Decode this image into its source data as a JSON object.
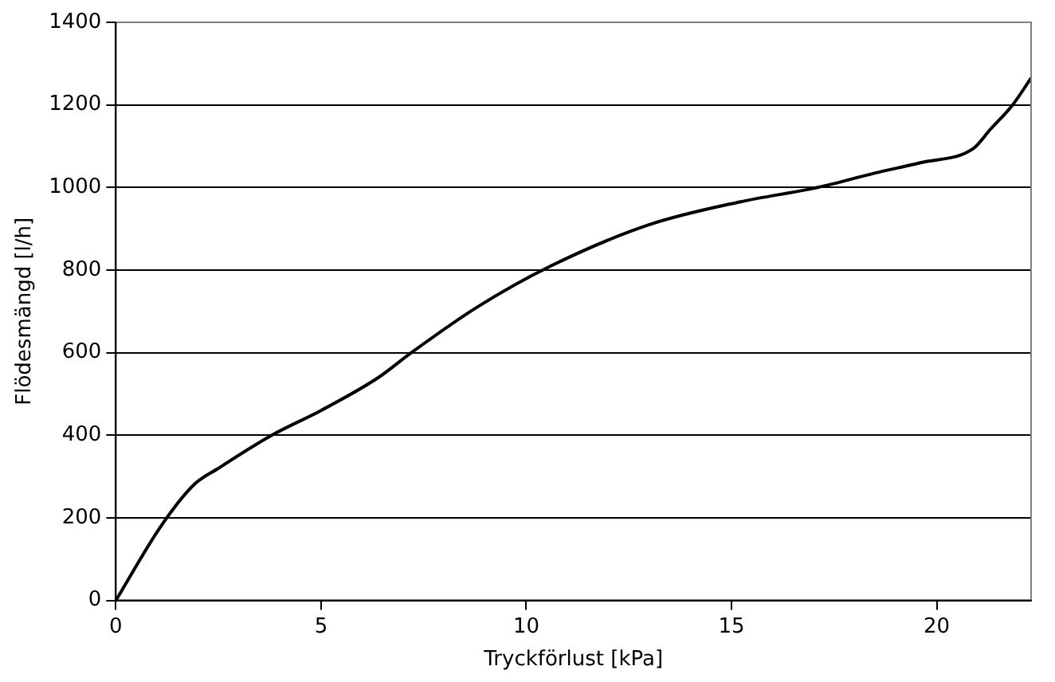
{
  "chart_data": {
    "type": "line",
    "xlabel": "Tryckförlust [kPa]",
    "ylabel": "Flödesmängd [l/h]",
    "series": [
      {
        "color": "#000000",
        "x": [
          0,
          1.1,
          1.9,
          2.5,
          3.8,
          5,
          6.4,
          7.2,
          8.8,
          10.6,
          13,
          15.2,
          17.1,
          18.5,
          19.6,
          20.9,
          21.3,
          21.85,
          22.3
        ],
        "values": [
          0,
          180,
          280,
          320,
          400,
          460,
          540,
          600,
          710,
          810,
          910,
          965,
          1000,
          1035,
          1060,
          1095,
          1140,
          1200,
          1265
        ]
      }
    ],
    "xlim": [
      0,
      22.3
    ],
    "xticks": [
      0,
      5,
      10,
      15,
      20
    ],
    "ylim": [
      0,
      1400
    ],
    "yticks": [
      0,
      200,
      400,
      600,
      800,
      1000,
      1200,
      1400
    ],
    "grid": "y",
    "legend": false,
    "marker": "none",
    "line_style": "solid"
  }
}
